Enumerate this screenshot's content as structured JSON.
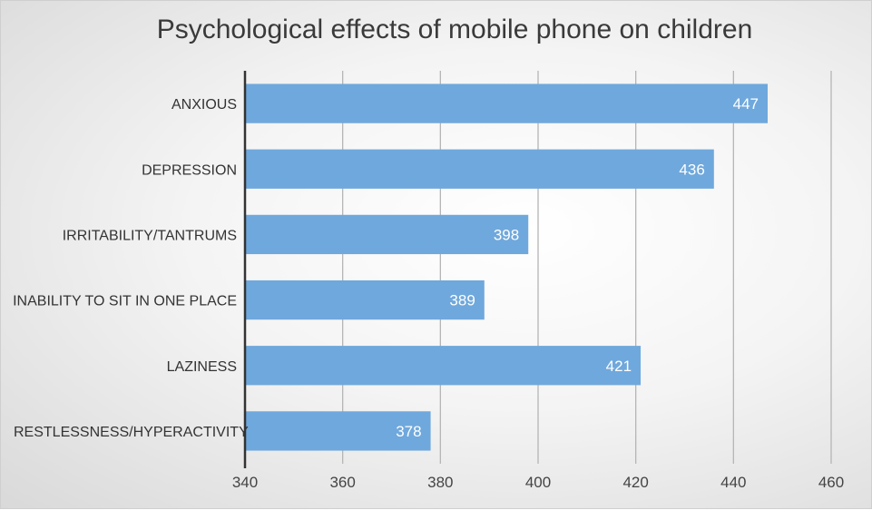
{
  "chart_data": {
    "type": "bar",
    "orientation": "horizontal",
    "title": "Psychological effects of mobile phone on children",
    "categories": [
      "ANXIOUS",
      "DEPRESSION",
      "IRRITABILITY/TANTRUMS",
      "INABILITY TO SIT IN ONE PLACE",
      "LAZINESS",
      "RESTLESSNESS/HYPERACTIVITY"
    ],
    "values": [
      447,
      436,
      398,
      389,
      421,
      378
    ],
    "xlim": [
      340,
      460
    ],
    "xticks": [
      340,
      360,
      380,
      400,
      420,
      440,
      460
    ],
    "xlabel": "",
    "ylabel": "",
    "grid": true,
    "legend": "none",
    "bar_color": "#6fa8dc",
    "data_labels": true
  }
}
